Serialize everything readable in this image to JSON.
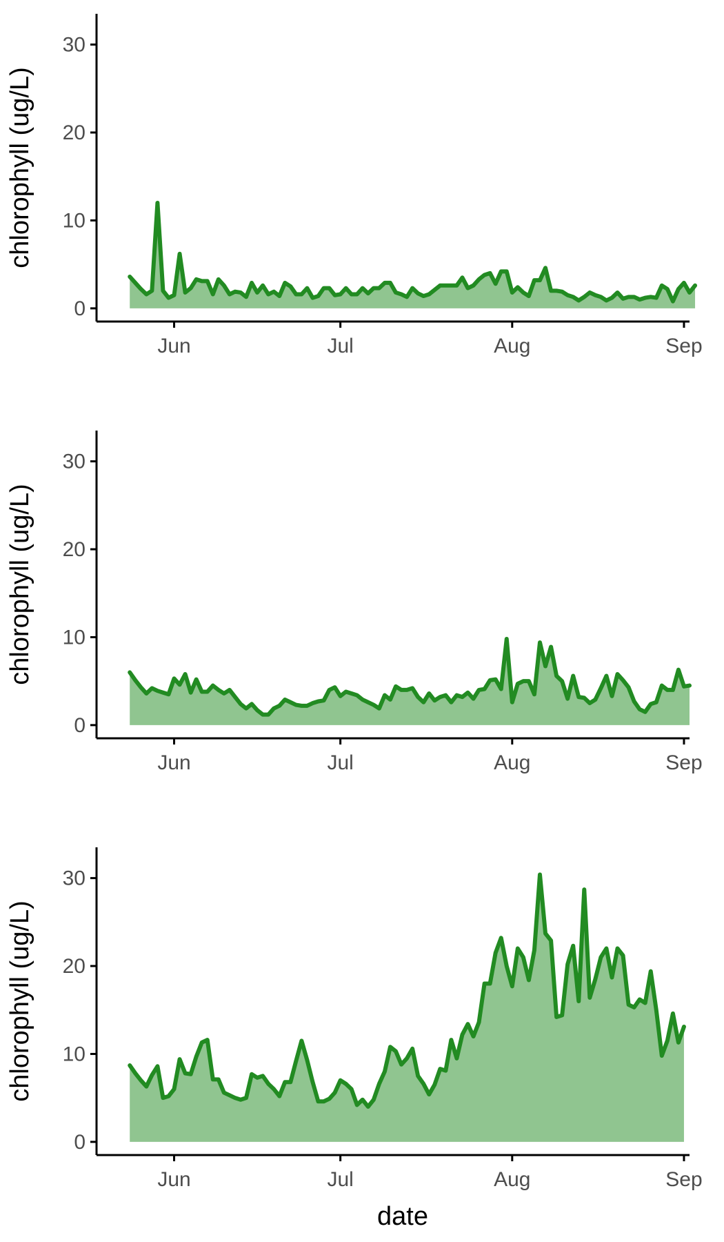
{
  "colors": {
    "line": "#228B22",
    "fill": "#90C590"
  },
  "chart_data": [
    {
      "type": "area",
      "xlabel": "",
      "ylabel": "chlorophyll (ug/L)",
      "ylim": [
        -1.5,
        33.5
      ],
      "yticks": [
        0,
        10,
        20,
        30
      ],
      "xlim": [
        "2020-05-18",
        "2020-09-02"
      ],
      "xticks": [
        {
          "label": "Jun",
          "date": "2020-06-01"
        },
        {
          "label": "Jul",
          "date": "2020-07-01"
        },
        {
          "label": "Aug",
          "date": "2020-08-01"
        },
        {
          "label": "Sep",
          "date": "2020-09-01"
        }
      ],
      "x_start": "2020-05-24",
      "y": [
        3.6,
        2.9,
        2.2,
        1.6,
        2.0,
        12.0,
        2.0,
        1.2,
        1.5,
        6.2,
        1.8,
        2.3,
        3.3,
        3.1,
        3.1,
        1.6,
        3.3,
        2.6,
        1.6,
        1.9,
        1.8,
        1.3,
        2.9,
        1.8,
        2.6,
        1.6,
        1.9,
        1.4,
        2.9,
        2.5,
        1.6,
        1.6,
        2.3,
        1.2,
        1.4,
        2.3,
        2.3,
        1.5,
        1.6,
        2.3,
        1.6,
        1.6,
        2.3,
        1.7,
        2.3,
        2.3,
        2.9,
        2.9,
        1.8,
        1.6,
        1.3,
        2.3,
        1.7,
        1.4,
        1.6,
        2.1,
        2.6,
        2.6,
        2.6,
        2.6,
        3.5,
        2.3,
        2.6,
        3.3,
        3.8,
        4.0,
        2.8,
        4.2,
        4.2,
        1.8,
        2.4,
        1.8,
        1.4,
        3.2,
        3.2,
        4.6,
        2.0,
        2.0,
        1.9,
        1.5,
        1.3,
        0.9,
        1.3,
        1.8,
        1.5,
        1.3,
        0.9,
        1.2,
        1.8,
        1.1,
        1.3,
        1.3,
        1.0,
        1.2,
        1.3,
        1.2,
        2.6,
        2.2,
        0.8,
        2.2,
        2.9,
        1.8,
        2.6
      ]
    },
    {
      "type": "area",
      "xlabel": "",
      "ylabel": "chlorophyll (ug/L)",
      "ylim": [
        -1.5,
        33.5
      ],
      "yticks": [
        0,
        10,
        20,
        30
      ],
      "xlim": [
        "2020-05-18",
        "2020-09-02"
      ],
      "xticks": [
        {
          "label": "Jun",
          "date": "2020-06-01"
        },
        {
          "label": "Jul",
          "date": "2020-07-01"
        },
        {
          "label": "Aug",
          "date": "2020-08-01"
        },
        {
          "label": "Sep",
          "date": "2020-09-01"
        }
      ],
      "x_start": "2020-05-24",
      "y": [
        6.0,
        5.1,
        4.3,
        3.6,
        4.2,
        3.9,
        3.7,
        3.5,
        5.3,
        4.6,
        5.8,
        3.7,
        5.2,
        3.8,
        3.8,
        4.5,
        4.0,
        3.6,
        4.0,
        3.2,
        2.4,
        1.9,
        2.4,
        1.7,
        1.2,
        1.2,
        1.9,
        2.2,
        2.9,
        2.6,
        2.3,
        2.2,
        2.2,
        2.5,
        2.7,
        2.8,
        4.0,
        4.3,
        3.3,
        3.8,
        3.6,
        3.4,
        2.9,
        2.6,
        2.3,
        1.9,
        3.4,
        2.9,
        4.4,
        4.0,
        4.0,
        4.2,
        3.2,
        2.6,
        3.6,
        2.8,
        3.2,
        3.4,
        2.6,
        3.4,
        3.2,
        3.7,
        3.0,
        4.0,
        4.1,
        5.1,
        5.2,
        4.1,
        9.8,
        2.6,
        4.7,
        5.0,
        5.0,
        3.5,
        9.4,
        6.7,
        8.9,
        5.6,
        5.0,
        3.0,
        5.6,
        3.2,
        3.1,
        2.5,
        2.9,
        4.2,
        5.6,
        3.3,
        5.8,
        5.1,
        4.3,
        2.7,
        1.8,
        1.5,
        2.4,
        2.6,
        4.5,
        4.0,
        4.0,
        6.3,
        4.4,
        4.5
      ]
    },
    {
      "type": "area",
      "xlabel": "date",
      "ylabel": "chlorophyll (ug/L)",
      "ylim": [
        -1.5,
        33.5
      ],
      "yticks": [
        0,
        10,
        20,
        30
      ],
      "xlim": [
        "2020-05-18",
        "2020-09-02"
      ],
      "xticks": [
        {
          "label": "Jun",
          "date": "2020-06-01"
        },
        {
          "label": "Jul",
          "date": "2020-07-01"
        },
        {
          "label": "Aug",
          "date": "2020-08-01"
        },
        {
          "label": "Sep",
          "date": "2020-09-01"
        }
      ],
      "x_start": "2020-05-24",
      "y": [
        8.7,
        7.8,
        7.0,
        6.3,
        7.6,
        8.6,
        5.0,
        5.2,
        6.0,
        9.4,
        7.8,
        7.7,
        9.7,
        11.3,
        11.6,
        7.1,
        7.1,
        5.6,
        5.3,
        5.0,
        4.8,
        5.0,
        7.7,
        7.3,
        7.5,
        6.6,
        6.0,
        5.2,
        6.8,
        6.8,
        9.2,
        11.5,
        9.3,
        6.8,
        4.6,
        4.6,
        4.9,
        5.6,
        7.0,
        6.6,
        6.0,
        4.2,
        4.8,
        4.0,
        4.8,
        6.6,
        8.0,
        10.8,
        10.3,
        8.8,
        9.5,
        10.6,
        7.5,
        6.6,
        5.4,
        6.5,
        8.3,
        8.1,
        11.6,
        9.5,
        12.2,
        13.4,
        12.0,
        13.6,
        18.0,
        18.0,
        21.5,
        23.2,
        20.0,
        17.7,
        22.0,
        21.0,
        18.4,
        21.8,
        30.4,
        23.7,
        22.9,
        14.2,
        14.4,
        20.2,
        22.3,
        16.0,
        28.7,
        16.4,
        18.5,
        21.0,
        22.0,
        18.7,
        22.0,
        21.2,
        15.6,
        15.3,
        16.2,
        15.8,
        19.4,
        15.0,
        9.8,
        11.5,
        14.6,
        11.3,
        13.1
      ]
    }
  ]
}
